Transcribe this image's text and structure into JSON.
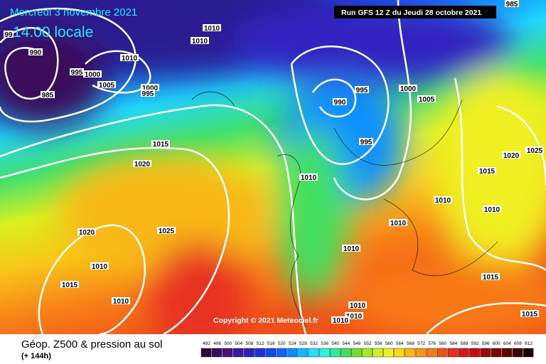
{
  "header": {
    "date": "Mercredi 3 novembre 2021",
    "time": "14.00 locale",
    "run": "Run GFS 12 Z du Jeudi 28 octobre 2021",
    "copyright": "Copyright © 2021 Meteociel.fr"
  },
  "footer": {
    "title": "Géop. Z500 & pression au sol",
    "lead": "(+ 144h)"
  },
  "isobar_labels": [
    "990",
    "985",
    "995",
    "1000",
    "1005",
    "1010",
    "1000",
    "995",
    "1010",
    "1010",
    "990",
    "995",
    "995",
    "1000",
    "1005",
    "1015",
    "1020",
    "1020",
    "1025",
    "1010",
    "1015",
    "1010",
    "1010",
    "1010",
    "1010",
    "1010",
    "1010",
    "1010",
    "1010",
    "1010",
    "1015",
    "1020",
    "1025",
    "1015",
    "1015",
    "985",
    "99"
  ],
  "scale": {
    "labels": [
      492,
      496,
      500,
      504,
      508,
      512,
      516,
      520,
      524,
      528,
      532,
      536,
      540,
      544,
      548,
      552,
      556,
      560,
      564,
      568,
      572,
      576,
      580,
      584,
      588,
      592,
      596,
      600,
      604,
      608,
      612
    ],
    "colors": [
      "#2a0a3a",
      "#3a0d5a",
      "#4a1080",
      "#4018a0",
      "#3020c0",
      "#2030d8",
      "#1048f0",
      "#0868ff",
      "#0890ff",
      "#10b8ff",
      "#20e0ff",
      "#30f0e0",
      "#30e8a0",
      "#40e060",
      "#70e030",
      "#a8e820",
      "#d0f020",
      "#f0f020",
      "#f8d818",
      "#f8b818",
      "#f89818",
      "#f87818",
      "#f05018",
      "#e83020",
      "#d81818",
      "#c01010",
      "#a00808",
      "#800404",
      "#600202",
      "#400000",
      "#200000"
    ]
  }
}
